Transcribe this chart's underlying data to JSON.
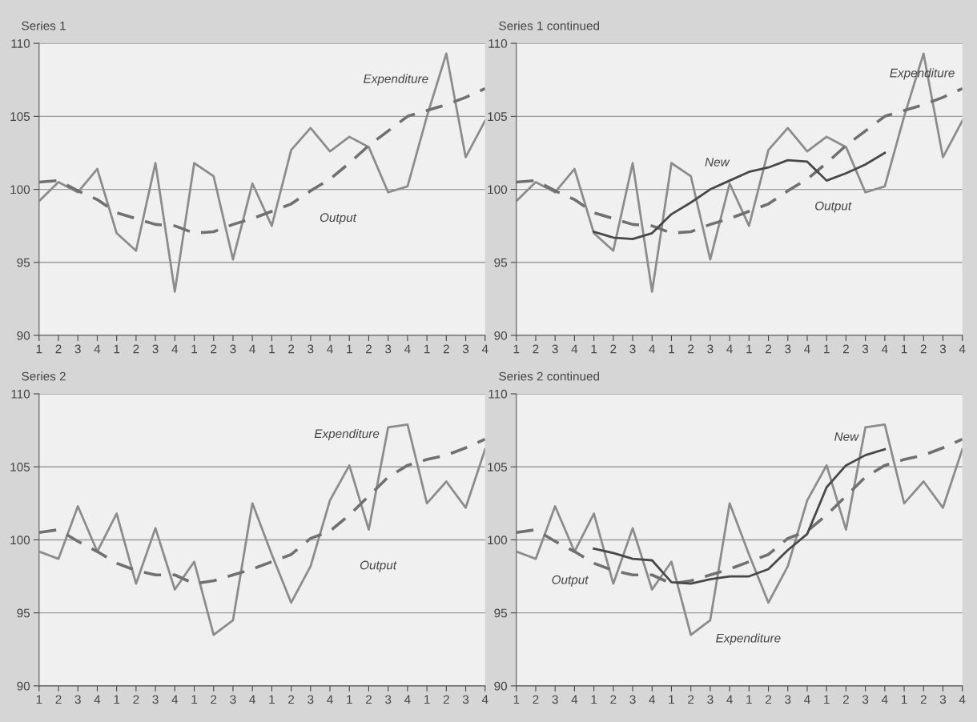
{
  "chart_data": [
    {
      "type": "line",
      "title": "Series 1",
      "categories": [
        "1",
        "2",
        "3",
        "4",
        "1",
        "2",
        "3",
        "4",
        "1",
        "2",
        "3",
        "4",
        "1",
        "2",
        "3",
        "4",
        "1",
        "2",
        "3",
        "4",
        "1",
        "2",
        "3",
        "4"
      ],
      "ylim": [
        90,
        110
      ],
      "yticks": [
        90,
        95,
        100,
        105,
        110
      ],
      "grid": "y",
      "series": [
        {
          "color": "#8c8c8c",
          "line_style": "solid",
          "values": [
            99.2,
            100.5,
            99.8,
            101.4,
            97.0,
            95.8,
            101.8,
            93.0,
            101.8,
            100.9,
            95.2,
            100.4,
            97.5,
            102.7,
            104.2,
            102.6,
            103.6,
            102.9,
            99.8,
            100.2,
            105.0,
            109.3,
            102.2,
            104.7
          ]
        },
        {
          "color": "#707070",
          "line_style": "dashed",
          "values": [
            100.5,
            100.6,
            99.9,
            99.3,
            98.4,
            98.0,
            97.6,
            97.5,
            97.0,
            97.1,
            97.6,
            98.0,
            98.5,
            99.0,
            99.9,
            100.7,
            101.8,
            103.0,
            104.0,
            105.0,
            105.4,
            105.8,
            106.3,
            106.9
          ]
        }
      ],
      "annotations": [
        "Expenditure",
        "Output"
      ]
    },
    {
      "type": "line",
      "title": "Series 1 continued",
      "categories": [
        "1",
        "2",
        "3",
        "4",
        "1",
        "2",
        "3",
        "4",
        "1",
        "2",
        "3",
        "4",
        "1",
        "2",
        "3",
        "4",
        "1",
        "2",
        "3",
        "4",
        "1",
        "2",
        "3",
        "4"
      ],
      "ylim": [
        90,
        110
      ],
      "yticks": [
        90,
        95,
        100,
        105,
        110
      ],
      "grid": "y",
      "series": [
        {
          "color": "#8c8c8c",
          "line_style": "solid",
          "values": [
            99.2,
            100.5,
            99.8,
            101.4,
            97.0,
            95.8,
            101.8,
            93.0,
            101.8,
            100.9,
            95.2,
            100.4,
            97.5,
            102.7,
            104.2,
            102.6,
            103.6,
            102.9,
            99.8,
            100.2,
            105.0,
            109.3,
            102.2,
            104.7
          ]
        },
        {
          "color": "#707070",
          "line_style": "dashed",
          "values": [
            100.5,
            100.6,
            99.9,
            99.3,
            98.4,
            98.0,
            97.6,
            97.5,
            97.0,
            97.1,
            97.6,
            98.0,
            98.5,
            99.0,
            99.9,
            100.7,
            101.8,
            103.0,
            104.0,
            105.0,
            105.4,
            105.8,
            106.3,
            106.9
          ]
        },
        {
          "color": "#484848",
          "line_style": "solid",
          "values": [
            null,
            null,
            null,
            null,
            97.1,
            96.7,
            96.6,
            97.0,
            98.3,
            99.1,
            100.0,
            100.6,
            101.2,
            101.5,
            102.0,
            101.9,
            100.6,
            101.1,
            101.7,
            102.5,
            null,
            null,
            null,
            null
          ]
        }
      ],
      "annotations": [
        "Expenditure",
        "Output",
        "New"
      ]
    },
    {
      "type": "line",
      "title": "Series 2",
      "categories": [
        "1",
        "2",
        "3",
        "4",
        "1",
        "2",
        "3",
        "4",
        "1",
        "2",
        "3",
        "4",
        "1",
        "2",
        "3",
        "4",
        "1",
        "2",
        "3",
        "4",
        "1",
        "2",
        "3",
        "4"
      ],
      "ylim": [
        90,
        110
      ],
      "yticks": [
        90,
        95,
        100,
        105,
        110
      ],
      "grid": "y",
      "series": [
        {
          "color": "#8c8c8c",
          "line_style": "solid",
          "values": [
            99.2,
            98.7,
            102.3,
            99.2,
            101.8,
            97.0,
            100.8,
            96.6,
            98.5,
            93.5,
            94.5,
            102.5,
            99.0,
            95.7,
            98.2,
            102.7,
            105.1,
            100.7,
            107.7,
            107.9,
            102.5,
            104.0,
            102.2,
            106.2
          ]
        },
        {
          "color": "#707070",
          "line_style": "dashed",
          "values": [
            100.5,
            100.7,
            99.9,
            99.2,
            98.4,
            97.9,
            97.6,
            97.6,
            97.0,
            97.2,
            97.6,
            98.0,
            98.5,
            99.0,
            100.1,
            100.6,
            101.7,
            103.0,
            104.3,
            105.1,
            105.5,
            105.8,
            106.3,
            106.9
          ]
        }
      ],
      "annotations": [
        "Expenditure",
        "Output"
      ]
    },
    {
      "type": "line",
      "title": "Series 2 continued",
      "categories": [
        "1",
        "2",
        "3",
        "4",
        "1",
        "2",
        "3",
        "4",
        "1",
        "2",
        "3",
        "4",
        "1",
        "2",
        "3",
        "4",
        "1",
        "2",
        "3",
        "4",
        "1",
        "2",
        "3",
        "4"
      ],
      "ylim": [
        90,
        110
      ],
      "yticks": [
        90,
        95,
        100,
        105,
        110
      ],
      "grid": "y",
      "series": [
        {
          "color": "#8c8c8c",
          "line_style": "solid",
          "values": [
            99.2,
            98.7,
            102.3,
            99.2,
            101.8,
            97.0,
            100.8,
            96.6,
            98.5,
            93.5,
            94.5,
            102.5,
            99.0,
            95.7,
            98.2,
            102.7,
            105.1,
            100.7,
            107.7,
            107.9,
            102.5,
            104.0,
            102.2,
            106.2
          ]
        },
        {
          "color": "#707070",
          "line_style": "dashed",
          "values": [
            100.5,
            100.7,
            99.9,
            99.2,
            98.4,
            97.9,
            97.6,
            97.6,
            97.0,
            97.2,
            97.6,
            98.0,
            98.5,
            99.0,
            100.1,
            100.6,
            101.7,
            103.0,
            104.3,
            105.1,
            105.5,
            105.8,
            106.3,
            106.9
          ]
        },
        {
          "color": "#484848",
          "line_style": "solid",
          "values": [
            null,
            null,
            null,
            null,
            99.4,
            99.1,
            98.7,
            98.6,
            97.1,
            97.0,
            97.3,
            97.5,
            97.5,
            98.0,
            99.3,
            100.4,
            103.6,
            105.1,
            105.8,
            106.2,
            null,
            null,
            null,
            null
          ]
        }
      ],
      "annotations": [
        "Output",
        "Expenditure",
        "New"
      ]
    }
  ]
}
